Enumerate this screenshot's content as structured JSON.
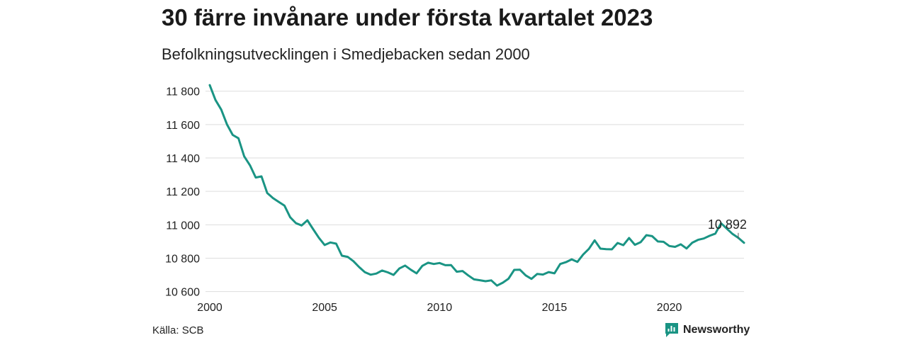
{
  "header": {
    "title": "30 färre invånare under första kvartalet 2023",
    "subtitle": "Befolkningsutvecklingen i Smedjebacken sedan 2000"
  },
  "footer": {
    "source": "Källa: SCB",
    "brand": "Newsworthy"
  },
  "colors": {
    "line": "#1a9484",
    "grid": "#dddddd",
    "brand": "#1a9484"
  },
  "chart_data": {
    "type": "line",
    "title": "30 färre invånare under första kvartalet 2023",
    "subtitle": "Befolkningsutvecklingen i Smedjebacken sedan 2000",
    "xlabel": "",
    "ylabel": "",
    "xlim": [
      2000,
      2023.25
    ],
    "ylim": [
      10590,
      11820
    ],
    "x_ticks": [
      {
        "value": 2000,
        "label": "2000"
      },
      {
        "value": 2005,
        "label": "2005"
      },
      {
        "value": 2010,
        "label": "2010"
      },
      {
        "value": 2015,
        "label": "2015"
      },
      {
        "value": 2020,
        "label": "2020"
      }
    ],
    "y_ticks": [
      {
        "value": 10600,
        "label": "10 600"
      },
      {
        "value": 10800,
        "label": "10 800"
      },
      {
        "value": 11000,
        "label": "11 000"
      },
      {
        "value": 11200,
        "label": "11 200"
      },
      {
        "value": 11400,
        "label": "11 400"
      },
      {
        "value": 11600,
        "label": "11 600"
      },
      {
        "value": 11800,
        "label": "11 800"
      }
    ],
    "grid": true,
    "annotation": {
      "x": 2023.0,
      "y": 10892,
      "label": "10 892"
    },
    "series": [
      {
        "x_start": 2000.0,
        "x_step": 0.25,
        "values": [
          11836,
          11747,
          11690,
          11601,
          11538,
          11518,
          11410,
          11356,
          11283,
          11290,
          11190,
          11160,
          11137,
          11115,
          11045,
          11010,
          10996,
          11027,
          10974,
          10922,
          10879,
          10894,
          10887,
          10815,
          10808,
          10782,
          10747,
          10716,
          10701,
          10708,
          10726,
          10715,
          10700,
          10738,
          10756,
          10731,
          10709,
          10754,
          10773,
          10765,
          10771,
          10758,
          10759,
          10719,
          10723,
          10697,
          10673,
          10668,
          10662,
          10667,
          10636,
          10653,
          10677,
          10730,
          10731,
          10697,
          10676,
          10706,
          10702,
          10717,
          10709,
          10765,
          10776,
          10793,
          10778,
          10822,
          10856,
          10907,
          10857,
          10854,
          10853,
          10891,
          10878,
          10921,
          10880,
          10896,
          10938,
          10932,
          10900,
          10898,
          10873,
          10868,
          10883,
          10858,
          10893,
          10910,
          10918,
          10934,
          10947,
          11009,
          10977,
          10945,
          10922,
          10892
        ]
      }
    ]
  }
}
